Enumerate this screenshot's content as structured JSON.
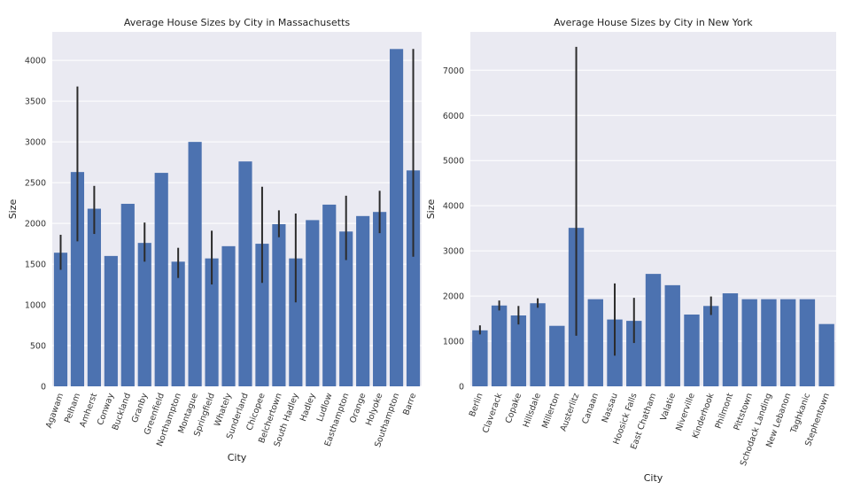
{
  "chart_data": [
    {
      "type": "bar",
      "title": "Average House Sizes by City in Massachusetts",
      "xlabel": "City",
      "ylabel": "Size",
      "ylim": [
        0,
        4350
      ],
      "yticks": [
        0,
        500,
        1000,
        1500,
        2000,
        2500,
        3000,
        3500,
        4000
      ],
      "grid": true,
      "categories": [
        "Agawam",
        "Pelham",
        "Amherst",
        "Conway",
        "Buckland",
        "Granby",
        "Greenfield",
        "Northampton",
        "Montague",
        "Springfield",
        "Whately",
        "Sunderland",
        "Chicopee",
        "Belchertown",
        "South Hadley",
        "Hadley",
        "Ludlow",
        "Easthampton",
        "Orange",
        "Holyoke",
        "Southampton",
        "Barre"
      ],
      "values": [
        1640,
        2630,
        2180,
        1600,
        2240,
        1760,
        2620,
        1530,
        3000,
        1570,
        1720,
        2760,
        1750,
        1990,
        1570,
        2040,
        2230,
        1900,
        2090,
        2140,
        4140,
        2650
      ],
      "error_bars": [
        [
          1430,
          1860
        ],
        [
          1780,
          3680
        ],
        [
          1870,
          2460
        ],
        null,
        null,
        [
          1530,
          2010
        ],
        null,
        [
          1330,
          1700
        ],
        null,
        [
          1250,
          1910
        ],
        null,
        null,
        [
          1270,
          2450
        ],
        [
          1830,
          2160
        ],
        [
          1030,
          2120
        ],
        null,
        null,
        [
          1550,
          2340
        ],
        null,
        [
          1880,
          2400
        ],
        null,
        [
          1590,
          4140
        ]
      ],
      "bar_color": "#4c72b0",
      "error_color": "#2b2b2b",
      "background": "#eaeaf2"
    },
    {
      "type": "bar",
      "title": "Average House Sizes by City in New York",
      "xlabel": "City",
      "ylabel": "Size",
      "ylim": [
        0,
        7850
      ],
      "yticks": [
        0,
        1000,
        2000,
        3000,
        4000,
        5000,
        6000,
        7000
      ],
      "grid": true,
      "categories": [
        "Berlin",
        "Claverack",
        "Copake",
        "Hillsdale",
        "Millerton",
        "Austerlitz",
        "Canaan",
        "Nassau",
        "Hoosick Falls",
        "East Chatham",
        "Valatie",
        "Niverville",
        "Kinderhook",
        "Philmont",
        "Pittstown",
        "Schodack Landing",
        "New Lebanon",
        "Taghkanic",
        "Stephentown"
      ],
      "values": [
        1240,
        1790,
        1570,
        1840,
        1340,
        3510,
        1930,
        1480,
        1450,
        2490,
        2240,
        1590,
        1780,
        2060,
        1930,
        1930,
        1930,
        1930,
        1380
      ],
      "error_bars": [
        [
          1150,
          1350
        ],
        [
          1680,
          1900
        ],
        [
          1370,
          1780
        ],
        [
          1740,
          1950
        ],
        null,
        [
          1120,
          7520
        ],
        null,
        [
          680,
          2280
        ],
        [
          960,
          1960
        ],
        null,
        null,
        null,
        [
          1580,
          1990
        ],
        null,
        null,
        null,
        null,
        null,
        null
      ],
      "bar_color": "#4c72b0",
      "error_color": "#2b2b2b",
      "background": "#eaeaf2"
    }
  ]
}
